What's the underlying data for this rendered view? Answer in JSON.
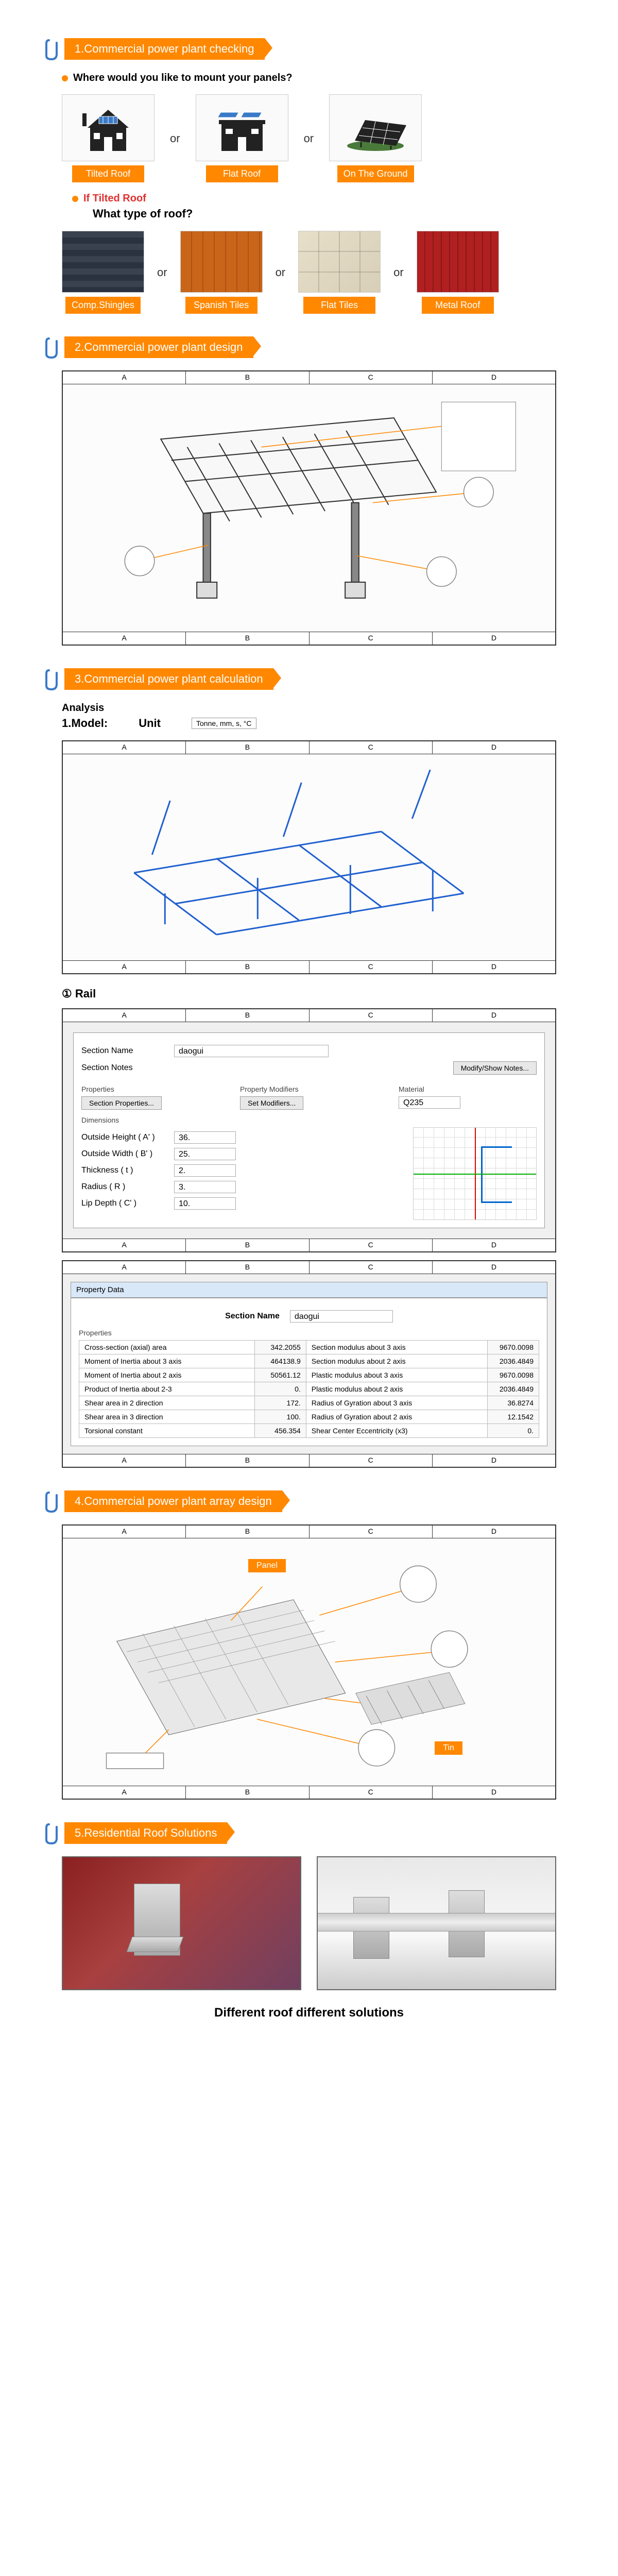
{
  "sections": {
    "s1": {
      "title": "1.Commercial power plant checking"
    },
    "s2": {
      "title": "2.Commercial power plant design"
    },
    "s3": {
      "title": "3.Commercial power plant calculation"
    },
    "s4": {
      "title": "4.Commercial power plant array design"
    },
    "s5": {
      "title": "5.Residential Roof Solutions"
    }
  },
  "q1": {
    "question": "Where would you like to mount your panels?",
    "opt1": "Tilted Roof",
    "opt2": "Flat Roof",
    "opt3": "On The Ground",
    "or": "or"
  },
  "sub": {
    "if_tilted": "If Tilted Roof",
    "what_type": "What type of roof?"
  },
  "roofs": {
    "r1": "Comp.Shingles",
    "r2": "Spanish Tiles",
    "r3": "Flat Tiles",
    "r4": "Metal Roof",
    "or": "or"
  },
  "ruler": {
    "a": "A",
    "b": "B",
    "c": "C",
    "d": "D"
  },
  "analysis": {
    "label": "Analysis",
    "model": "1.Model:",
    "unit": "Unit",
    "unit_value": "Tonne, mm, s, °C"
  },
  "rail": {
    "label": "① Rail"
  },
  "section_form": {
    "section_name_label": "Section Name",
    "section_name_value": "daogui",
    "section_notes_label": "Section Notes",
    "modify_notes": "Modify/Show Notes...",
    "properties_group": "Properties",
    "section_properties_btn": "Section Properties...",
    "property_modifiers_group": "Property Modifiers",
    "set_modifiers_btn": "Set Modifiers...",
    "material_group": "Material",
    "material_value": "Q235",
    "dimensions_group": "Dimensions",
    "dim1_label": "Outside Height ( A' )",
    "dim1_value": "36.",
    "dim2_label": "Outside Width ( B' )",
    "dim2_value": "25.",
    "dim3_label": "Thickness ( t )",
    "dim3_value": "2.",
    "dim4_label": "Radius ( R )",
    "dim4_value": "3.",
    "dim5_label": "Lip Depth ( C' )",
    "dim5_value": "10."
  },
  "prop_data": {
    "header": "Property Data",
    "section_name_label": "Section Name",
    "section_name_value": "daogui",
    "properties_label": "Properties",
    "rows": [
      {
        "l1": "Cross-section (axial) area",
        "v1": "342.2055",
        "l2": "Section modulus about 3 axis",
        "v2": "9670.0098"
      },
      {
        "l1": "Moment of Inertia about 3 axis",
        "v1": "464138.9",
        "l2": "Section modulus about 2 axis",
        "v2": "2036.4849"
      },
      {
        "l1": "Moment of Inertia about 2 axis",
        "v1": "50561.12",
        "l2": "Plastic modulus about 3 axis",
        "v2": "9670.0098"
      },
      {
        "l1": "Product of Inertia about 2-3",
        "v1": "0.",
        "l2": "Plastic modulus about 2 axis",
        "v2": "2036.4849"
      },
      {
        "l1": "Shear area in 2 direction",
        "v1": "172.",
        "l2": "Radius of Gyration about 3 axis",
        "v2": "36.8274"
      },
      {
        "l1": "Shear area in 3 direction",
        "v1": "100.",
        "l2": "Radius of Gyration about 2 axis",
        "v2": "12.1542"
      },
      {
        "l1": "Torsional constant",
        "v1": "456.354",
        "l2": "Shear Center Eccentricity (x3)",
        "v2": "0."
      }
    ]
  },
  "array": {
    "panel_label": "Panel",
    "tin_label": "Tin"
  },
  "footer": {
    "text": "Different roof different solutions"
  },
  "colors": {
    "orange": "#ff8800",
    "clip_blue": "#3a7ac8"
  }
}
